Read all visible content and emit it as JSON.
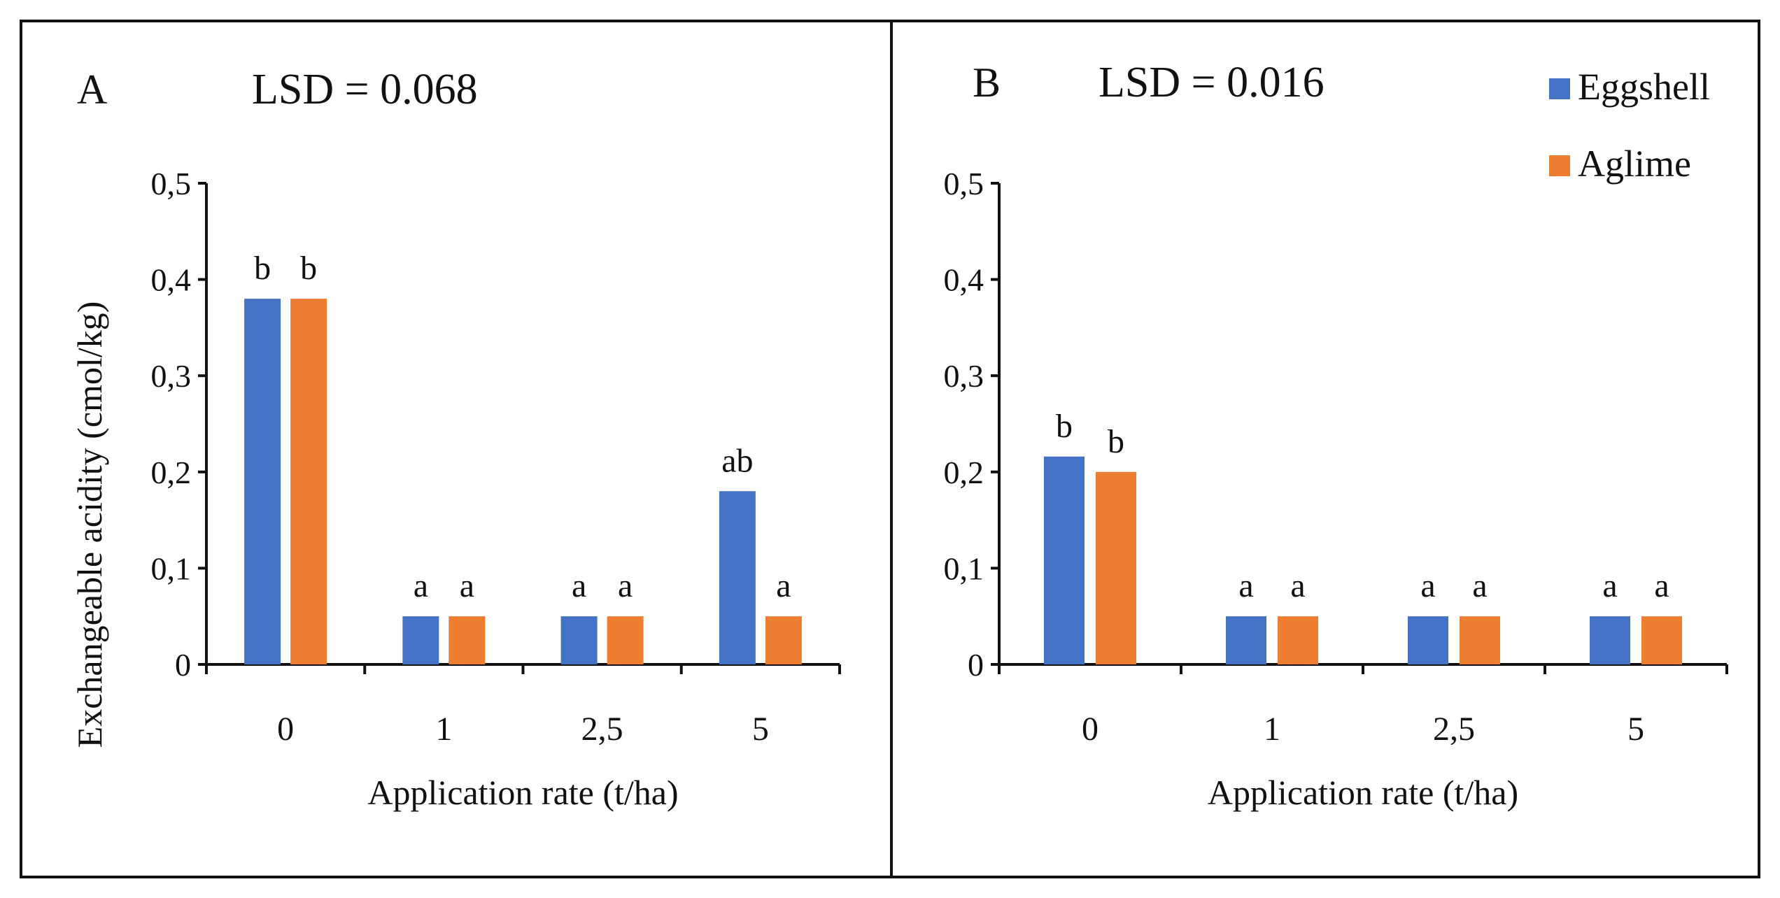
{
  "legend": [
    {
      "name": "Eggshell",
      "color": "#4472C4"
    },
    {
      "name": "Aglime",
      "color": "#ED7D31"
    }
  ],
  "chart_data": [
    {
      "type": "bar",
      "panel_label": "A",
      "lsd_text": "LSD = 0.068",
      "categories": [
        "0",
        "1",
        "2,5",
        "5"
      ],
      "series": [
        {
          "name": "Eggshell",
          "color": "#4472C4",
          "values": [
            0.38,
            0.05,
            0.05,
            0.18
          ],
          "labels": [
            "b",
            "a",
            "a",
            "ab"
          ]
        },
        {
          "name": "Aglime",
          "color": "#ED7D31",
          "values": [
            0.38,
            0.05,
            0.05,
            0.05
          ],
          "labels": [
            "b",
            "a",
            "a",
            "a"
          ]
        }
      ],
      "xlabel": "Application rate (t/ha)",
      "ylabel": "Exchangeable acidity (cmol/kg)",
      "ylim": [
        0,
        0.5
      ],
      "yticks": [
        "0",
        "0,1",
        "0,2",
        "0,3",
        "0,4",
        "0,5"
      ],
      "grid": false,
      "legend": "none"
    },
    {
      "type": "bar",
      "panel_label": "B",
      "lsd_text": "LSD = 0.016",
      "categories": [
        "0",
        "1",
        "2,5",
        "5"
      ],
      "series": [
        {
          "name": "Eggshell",
          "color": "#4472C4",
          "values": [
            0.216,
            0.05,
            0.05,
            0.05
          ],
          "labels": [
            "b",
            "a",
            "a",
            "a"
          ]
        },
        {
          "name": "Aglime",
          "color": "#ED7D31",
          "values": [
            0.2,
            0.05,
            0.05,
            0.05
          ],
          "labels": [
            "b",
            "a",
            "a",
            "a"
          ]
        }
      ],
      "xlabel": "Application rate (t/ha)",
      "ylabel": "",
      "ylim": [
        0,
        0.5
      ],
      "yticks": [
        "0",
        "0,1",
        "0,2",
        "0,3",
        "0,4",
        "0,5"
      ],
      "grid": false,
      "legend": "top-right"
    }
  ]
}
